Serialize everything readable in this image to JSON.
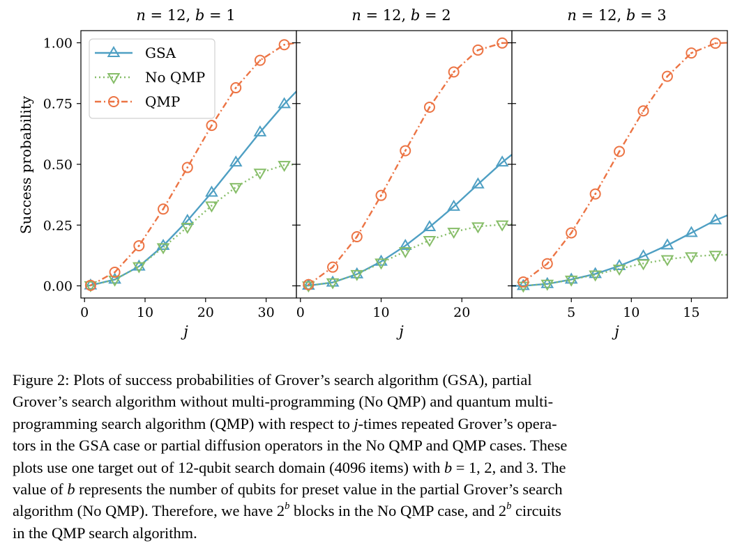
{
  "chart_data": [
    {
      "type": "line",
      "title_var_n": "n",
      "title_val_n": "12",
      "title_var_b": "b",
      "title_val_b": "1",
      "xlabel": "j",
      "ylabel": "Success probability",
      "xlim": [
        -0.6,
        35
      ],
      "ylim": [
        -0.05,
        1.05
      ],
      "xticks": [
        0,
        10,
        20,
        30
      ],
      "yticks": [
        0.0,
        0.25,
        0.5,
        0.75,
        1.0
      ],
      "ytick_labels": [
        "0.00",
        "0.25",
        "0.50",
        "0.75",
        "1.00"
      ],
      "legend": "top-left",
      "series": [
        {
          "name": "GSA",
          "style": "solid",
          "marker": "triangle-up",
          "color": "#4e9fc3",
          "line_x": [
            0.5,
            1,
            5,
            9,
            13,
            17,
            21,
            25,
            29,
            33,
            35
          ],
          "line_y": [
            0.0,
            0.002,
            0.026,
            0.08,
            0.165,
            0.268,
            0.384,
            0.508,
            0.632,
            0.748,
            0.8
          ],
          "x": [
            1,
            5,
            9,
            13,
            17,
            21,
            25,
            29,
            33
          ],
          "y": [
            0.002,
            0.026,
            0.08,
            0.165,
            0.268,
            0.384,
            0.508,
            0.632,
            0.748
          ]
        },
        {
          "name": "No QMP",
          "style": "dotted",
          "marker": "triangle-down",
          "color": "#86bd68",
          "line_x": [
            1,
            5,
            9,
            13,
            17,
            21,
            25,
            29,
            33,
            35
          ],
          "line_y": [
            0.002,
            0.025,
            0.08,
            0.158,
            0.242,
            0.33,
            0.406,
            0.465,
            0.497,
            0.5
          ],
          "x": [
            1,
            5,
            9,
            13,
            17,
            21,
            25,
            29,
            33
          ],
          "y": [
            0.002,
            0.025,
            0.08,
            0.158,
            0.242,
            0.33,
            0.406,
            0.465,
            0.497
          ]
        },
        {
          "name": "QMP",
          "style": "dashdot",
          "marker": "circle-dot",
          "color": "#ec7444",
          "line_x": [
            1,
            5,
            9,
            13,
            17,
            21,
            25,
            29,
            33,
            35
          ],
          "line_y": [
            0.002,
            0.056,
            0.165,
            0.316,
            0.487,
            0.66,
            0.815,
            0.928,
            0.992,
            1.0
          ],
          "x": [
            1,
            5,
            9,
            13,
            17,
            21,
            25,
            29,
            33
          ],
          "y": [
            0.002,
            0.056,
            0.165,
            0.316,
            0.487,
            0.66,
            0.815,
            0.928,
            0.992
          ]
        }
      ]
    },
    {
      "type": "line",
      "title_var_n": "n",
      "title_val_n": "12",
      "title_var_b": "b",
      "title_val_b": "2",
      "xlabel": "j",
      "ylabel": "",
      "xlim": [
        -0.5,
        26.2
      ],
      "ylim": [
        -0.05,
        1.05
      ],
      "xticks": [
        0,
        10,
        20
      ],
      "series": [
        {
          "name": "GSA",
          "style": "solid",
          "marker": "triangle-up",
          "color": "#4e9fc3",
          "line_x": [
            0.3,
            1,
            4,
            7,
            10,
            13,
            16,
            19,
            22,
            25,
            26.2
          ],
          "line_y": [
            0.0,
            0.001,
            0.014,
            0.048,
            0.1,
            0.165,
            0.242,
            0.326,
            0.418,
            0.508,
            0.54
          ],
          "x": [
            1,
            4,
            7,
            10,
            13,
            16,
            19,
            22,
            25
          ],
          "y": [
            0.001,
            0.014,
            0.048,
            0.1,
            0.165,
            0.242,
            0.326,
            0.418,
            0.508
          ]
        },
        {
          "name": "No QMP",
          "style": "dotted",
          "marker": "triangle-down",
          "color": "#86bd68",
          "line_x": [
            1,
            4,
            7,
            10,
            13,
            16,
            19,
            22,
            25,
            26.2
          ],
          "line_y": [
            0.001,
            0.014,
            0.048,
            0.095,
            0.142,
            0.188,
            0.222,
            0.244,
            0.252,
            0.253
          ],
          "x": [
            1,
            4,
            7,
            10,
            13,
            16,
            19,
            22,
            25
          ],
          "y": [
            0.001,
            0.014,
            0.048,
            0.095,
            0.142,
            0.188,
            0.222,
            0.244,
            0.252
          ]
        },
        {
          "name": "QMP",
          "style": "dashdot",
          "marker": "circle-dot",
          "color": "#ec7444",
          "line_x": [
            1,
            4,
            7,
            10,
            13,
            16,
            19,
            22,
            25,
            26.2
          ],
          "line_y": [
            0.005,
            0.077,
            0.202,
            0.372,
            0.556,
            0.735,
            0.88,
            0.97,
            0.999,
            1.0
          ],
          "x": [
            1,
            4,
            7,
            10,
            13,
            16,
            19,
            22,
            25
          ],
          "y": [
            0.005,
            0.077,
            0.202,
            0.372,
            0.556,
            0.735,
            0.88,
            0.97,
            0.999
          ]
        }
      ]
    },
    {
      "type": "line",
      "title_var_n": "n",
      "title_val_n": "12",
      "title_var_b": "b",
      "title_val_b": "3",
      "xlabel": "j",
      "ylabel": "",
      "xlim": [
        0.05,
        18.0
      ],
      "ylim": [
        -0.05,
        1.05
      ],
      "xticks": [
        5,
        10,
        15
      ],
      "series": [
        {
          "name": "GSA",
          "style": "solid",
          "marker": "triangle-up",
          "color": "#4e9fc3",
          "line_x": [
            0.05,
            1,
            3,
            5,
            7,
            9,
            11,
            13,
            15,
            17,
            18.0
          ],
          "line_y": [
            0.0,
            0.0,
            0.008,
            0.026,
            0.049,
            0.082,
            0.122,
            0.167,
            0.218,
            0.27,
            0.29
          ],
          "x": [
            1,
            3,
            5,
            7,
            9,
            11,
            13,
            15,
            17
          ],
          "y": [
            0.0,
            0.008,
            0.026,
            0.049,
            0.082,
            0.122,
            0.167,
            0.218,
            0.27
          ]
        },
        {
          "name": "No QMP",
          "style": "dotted",
          "marker": "triangle-down",
          "color": "#86bd68",
          "line_x": [
            1,
            3,
            5,
            7,
            9,
            11,
            13,
            15,
            17,
            18.0
          ],
          "line_y": [
            0.0,
            0.008,
            0.025,
            0.046,
            0.07,
            0.092,
            0.109,
            0.121,
            0.127,
            0.128
          ],
          "x": [
            1,
            3,
            5,
            7,
            9,
            11,
            13,
            15,
            17
          ],
          "y": [
            0.0,
            0.008,
            0.025,
            0.046,
            0.07,
            0.092,
            0.109,
            0.121,
            0.127
          ]
        },
        {
          "name": "QMP",
          "style": "dashdot",
          "marker": "circle-dot",
          "color": "#ec7444",
          "line_x": [
            1,
            3,
            5,
            7,
            9,
            11,
            13,
            15,
            17,
            18.0
          ],
          "line_y": [
            0.016,
            0.091,
            0.218,
            0.378,
            0.553,
            0.72,
            0.862,
            0.958,
            0.998,
            1.0
          ],
          "x": [
            1,
            3,
            5,
            7,
            9,
            11,
            13,
            15,
            17
          ],
          "y": [
            0.016,
            0.091,
            0.218,
            0.378,
            0.553,
            0.72,
            0.862,
            0.958,
            0.998
          ]
        }
      ]
    }
  ],
  "caption": {
    "l1_a": "Figure 2:  Plots of success probabilities of Grover’s search algorithm (GSA), partial",
    "l2_a": "Grover’s search algorithm without multi-programming (No QMP) and quantum multi-",
    "l3_a": "programming search algorithm (QMP) with respect to ",
    "l3_var": "j",
    "l3_b": "-times repeated Grover’s opera-",
    "l4_a": "tors in the GSA case or partial diffusion operators in the No QMP and QMP cases. These",
    "l5_a": "plots use one target out of 12-qubit search domain (4096 items) with ",
    "l5_var": "b",
    "l5_b": " = 1, 2, and 3. The",
    "l6_a": "value of ",
    "l6_var": "b",
    "l6_b": " represents the number of qubits for preset value in the partial Grover’s search",
    "l7_a": "algorithm (No QMP). Therefore, we have 2",
    "l7_sup": "b",
    "l7_b": " blocks in the No QMP case, and 2",
    "l7_sup2": "b",
    "l7_c": " circuits",
    "l8_a": "in the QMP search algorithm."
  }
}
